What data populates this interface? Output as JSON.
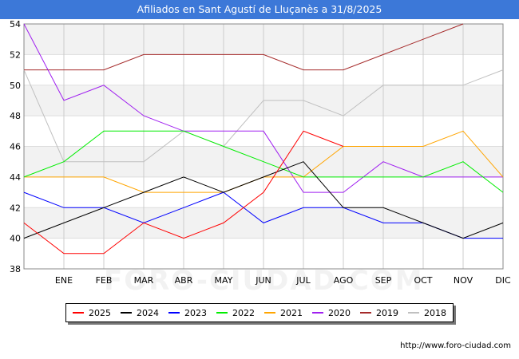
{
  "header": {
    "title": "Afiliados en Sant Agustí de Lluçanès a 31/8/2025"
  },
  "footer": {
    "url": "http://www.foro-ciudad.com",
    "watermark": "FORO-CIUDAD.COM"
  },
  "colors": {
    "title_bg": "#3c78d8",
    "band": "#f2f2f2",
    "grid": "#cccccc"
  },
  "chart_data": {
    "type": "line",
    "title": "Afiliados en Sant Agustí de Lluçanès a 31/8/2025",
    "categories": [
      "",
      "ENE",
      "FEB",
      "MAR",
      "ABR",
      "MAY",
      "JUN",
      "JUL",
      "AGO",
      "SEP",
      "OCT",
      "NOV",
      "DIC"
    ],
    "ylim": [
      38,
      54
    ],
    "yticks": [
      38,
      40,
      42,
      44,
      46,
      48,
      50,
      52,
      54
    ],
    "grid": true,
    "legend_position": "bottom",
    "series": [
      {
        "name": "2025",
        "color": "#ff0000",
        "values": [
          41,
          39,
          39,
          41,
          40,
          41,
          43,
          47,
          46,
          null,
          null,
          null,
          null
        ]
      },
      {
        "name": "2024",
        "color": "#000000",
        "values": [
          40,
          41,
          42,
          43,
          44,
          43,
          44,
          45,
          42,
          42,
          41,
          40,
          41
        ]
      },
      {
        "name": "2023",
        "color": "#0000ff",
        "values": [
          43,
          42,
          42,
          41,
          42,
          43,
          41,
          42,
          42,
          41,
          41,
          40,
          40
        ]
      },
      {
        "name": "2022",
        "color": "#00ee00",
        "values": [
          44,
          45,
          47,
          47,
          47,
          46,
          45,
          44,
          44,
          44,
          44,
          45,
          43
        ]
      },
      {
        "name": "2021",
        "color": "#ffa500",
        "values": [
          44,
          44,
          44,
          43,
          43,
          43,
          44,
          44,
          46,
          46,
          46,
          47,
          44
        ]
      },
      {
        "name": "2020",
        "color": "#a020f0",
        "values": [
          54,
          49,
          50,
          48,
          47,
          47,
          47,
          43,
          43,
          45,
          44,
          44,
          44
        ]
      },
      {
        "name": "2019",
        "color": "#a52a2a",
        "values": [
          51,
          51,
          51,
          52,
          52,
          52,
          52,
          51,
          51,
          52,
          53,
          54,
          null
        ]
      },
      {
        "name": "2018",
        "color": "#c0c0c0",
        "values": [
          51,
          45,
          45,
          45,
          47,
          46,
          49,
          49,
          48,
          50,
          50,
          50,
          51
        ]
      }
    ]
  }
}
